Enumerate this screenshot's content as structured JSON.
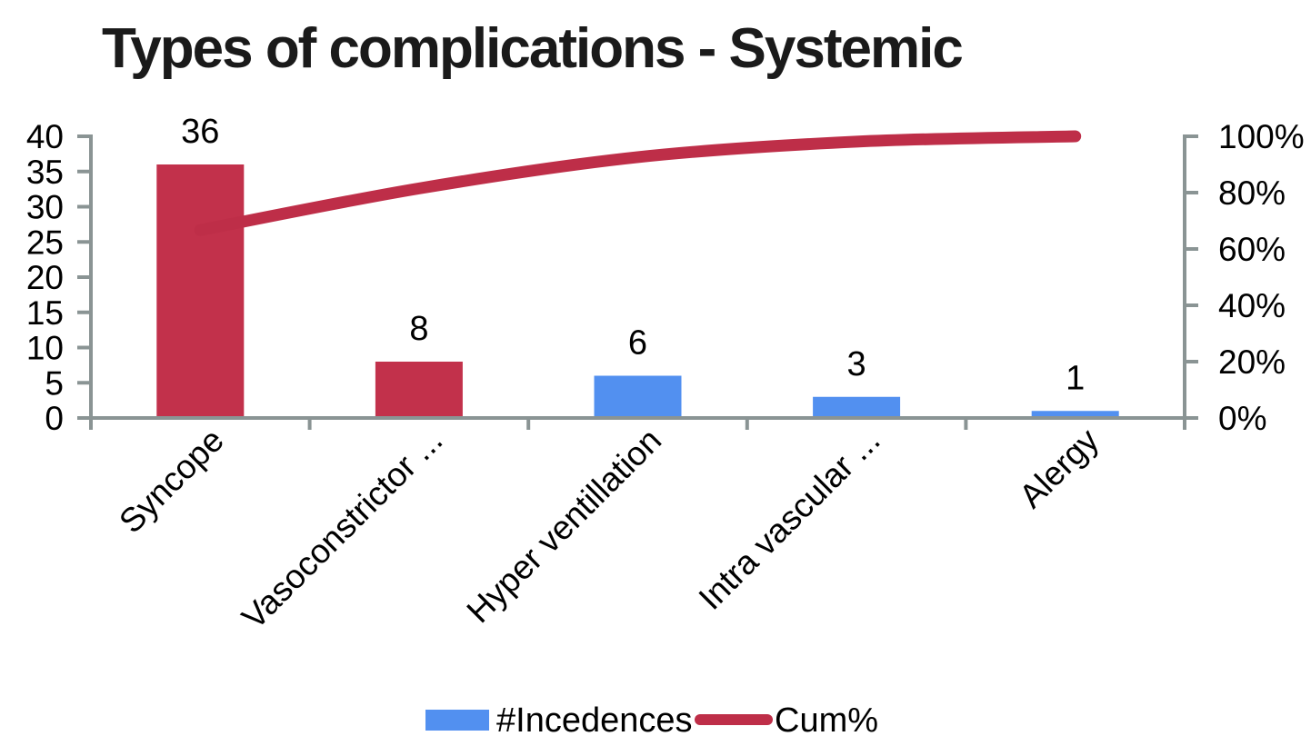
{
  "chart_data": {
    "type": "bar",
    "subtype": "pareto",
    "title": "Types of complications - Systemic",
    "categories": [
      "Syncope",
      "Vasoconstrictor ...",
      "Hyper ventillation",
      "Intra vascular ...",
      "Alergy"
    ],
    "series": [
      {
        "name": "#Incedences",
        "type": "bar",
        "values": [
          36,
          8,
          6,
          3,
          1
        ],
        "data_labels": [
          "36",
          "8",
          "6",
          "3",
          "1"
        ],
        "bar_colors": [
          "#C2314B",
          "#C2314B",
          "#5290F0",
          "#5290F0",
          "#5290F0"
        ]
      },
      {
        "name": "Cum%",
        "type": "line",
        "values_pct": [
          66.7,
          81.5,
          92.6,
          98.1,
          100.0
        ],
        "color": "#BE2E48"
      }
    ],
    "left_axis": {
      "min": 0,
      "max": 40,
      "step": 5,
      "tick_labels": [
        "0",
        "5",
        "10",
        "15",
        "20",
        "25",
        "30",
        "35",
        "40"
      ]
    },
    "right_axis": {
      "min": 0,
      "max": 100,
      "step": 20,
      "tick_labels": [
        "0%",
        "20%",
        "40%",
        "60%",
        "80%",
        "100%"
      ]
    },
    "legend": [
      {
        "label": "#Incedences",
        "swatch": "rect",
        "color": "#5290F0"
      },
      {
        "label": "Cum%",
        "swatch": "line",
        "color": "#BE2E48"
      }
    ],
    "colors": {
      "axis": "#8A9494",
      "text": "#000000",
      "title": "#1A1A1A",
      "background": "#FFFFFF"
    },
    "layout_hints": {
      "grid": false,
      "legend_position": "bottom",
      "x_label_rotation_deg": -45
    }
  }
}
